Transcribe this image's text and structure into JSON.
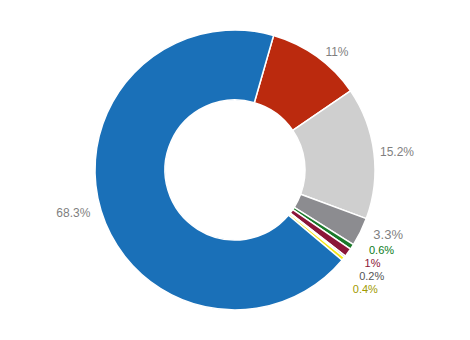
{
  "chart_data": {
    "type": "pie",
    "values": [
      11,
      15.2,
      3.3,
      0.6,
      1,
      0.2,
      0.4,
      68.3
    ],
    "value_labels": [
      "11%",
      "15.2%",
      "3.3%",
      "0.6%",
      "1%",
      "0.2%",
      "0.4%",
      "68.3%"
    ],
    "colors": [
      "#bb2a0e",
      "#cfcfcf",
      "#8c8c90",
      "#1a7a2a",
      "#8b1538",
      "#6b6b6b",
      "#f5e616",
      "#1a70b8"
    ],
    "data_labels": true
  }
}
